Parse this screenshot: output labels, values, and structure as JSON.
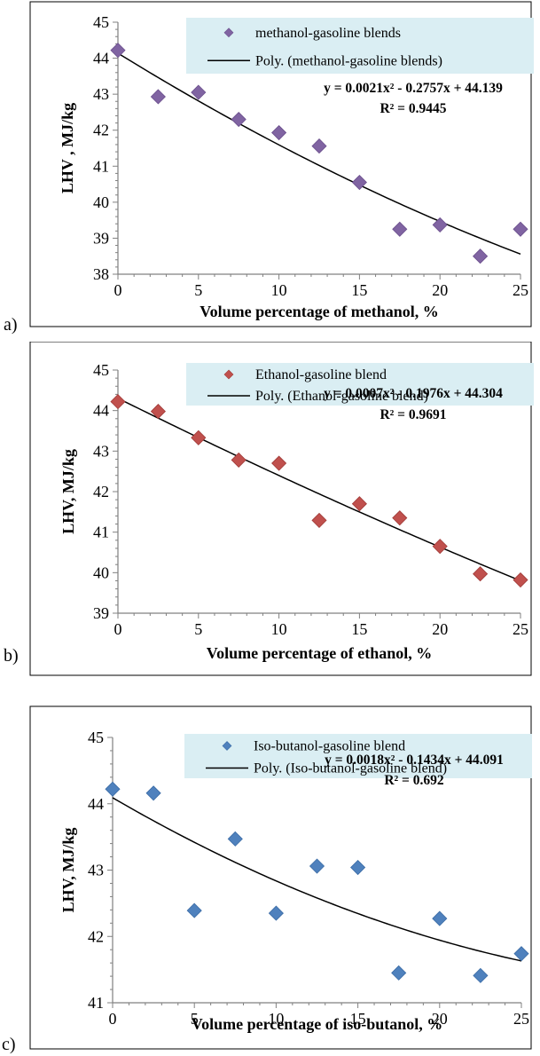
{
  "panels": [
    {
      "label": "a)"
    },
    {
      "label": "b)"
    },
    {
      "label": "c)"
    }
  ],
  "chart_data": [
    {
      "type": "scatter",
      "xlabel": "Volume percentage of methanol, %",
      "ylabel": "LHV , MJ/kg",
      "xlim": [
        0,
        25
      ],
      "ylim": [
        38,
        45
      ],
      "xticks": [
        0,
        5,
        10,
        15,
        20,
        25
      ],
      "yticks": [
        38,
        39,
        40,
        41,
        42,
        43,
        44,
        45
      ],
      "grid": false,
      "legend_position": "top-right",
      "marker_color": "#8064A2",
      "marker_stroke": "#6A4E8C",
      "series": [
        {
          "name": "methanol-gasoline blends",
          "x": [
            0,
            2.5,
            5,
            7.5,
            10,
            12.5,
            15,
            17.5,
            20,
            22.5,
            25
          ],
          "y": [
            44.22,
            42.93,
            43.05,
            42.3,
            41.93,
            41.56,
            40.55,
            39.25,
            39.37,
            38.5,
            39.25
          ]
        }
      ],
      "trendline": {
        "name": "Poly. (methanol-gasoline blends)",
        "coefficients": [
          44.139,
          -0.2757,
          0.0021
        ],
        "equation": "y = 0.0021x² - 0.2757x + 44.139",
        "r2": "R² = 0.9445"
      }
    },
    {
      "type": "scatter",
      "xlabel": "Volume percentage of ethanol, %",
      "ylabel": "LHV, MJ/kg",
      "xlim": [
        0,
        25
      ],
      "ylim": [
        39,
        45
      ],
      "xticks": [
        0,
        5,
        10,
        15,
        20,
        25
      ],
      "yticks": [
        39,
        40,
        41,
        42,
        43,
        44,
        45
      ],
      "grid": false,
      "legend_position": "top-right",
      "marker_color": "#C0504D",
      "marker_stroke": "#A03A37",
      "series": [
        {
          "name": "Ethanol-gasoline blend",
          "x": [
            0,
            2.5,
            5,
            7.5,
            10,
            12.5,
            15,
            17.5,
            20,
            22.5,
            25
          ],
          "y": [
            44.22,
            43.98,
            43.33,
            42.78,
            42.7,
            41.29,
            41.7,
            41.35,
            40.65,
            39.97,
            39.82
          ]
        }
      ],
      "trendline": {
        "name": "Poly. (Ethanol-gasoline blend)",
        "coefficients": [
          44.304,
          -0.1976,
          0.0007
        ],
        "equation": "y = 0.0007x² - 0.1976x + 44.304",
        "r2": "R² = 0.9691"
      }
    },
    {
      "type": "scatter",
      "xlabel": "Volume percentage of iso-butanol, %",
      "ylabel": "LHV, MJ/kg",
      "xlim": [
        0,
        25
      ],
      "ylim": [
        41,
        45
      ],
      "xticks": [
        0,
        5,
        10,
        15,
        20,
        25
      ],
      "yticks": [
        41,
        42,
        43,
        44,
        45
      ],
      "grid": false,
      "legend_position": "top-right",
      "marker_color": "#4F81BD",
      "marker_stroke": "#3A6BA5",
      "series": [
        {
          "name": "Iso-butanol-gasoline blend",
          "x": [
            0,
            2.5,
            5,
            7.5,
            10,
            12.5,
            15,
            17.5,
            20,
            22.5,
            25
          ],
          "y": [
            44.22,
            44.16,
            42.39,
            43.47,
            42.35,
            43.06,
            43.04,
            41.45,
            42.27,
            41.41,
            41.74
          ]
        }
      ],
      "trendline": {
        "name": "Poly. (Iso-butanol-gasoline blend)",
        "coefficients": [
          44.091,
          -0.1434,
          0.0018
        ],
        "equation": "y = 0.0018x² - 0.1434x + 44.091",
        "r2": "R² = 0.692"
      }
    }
  ]
}
